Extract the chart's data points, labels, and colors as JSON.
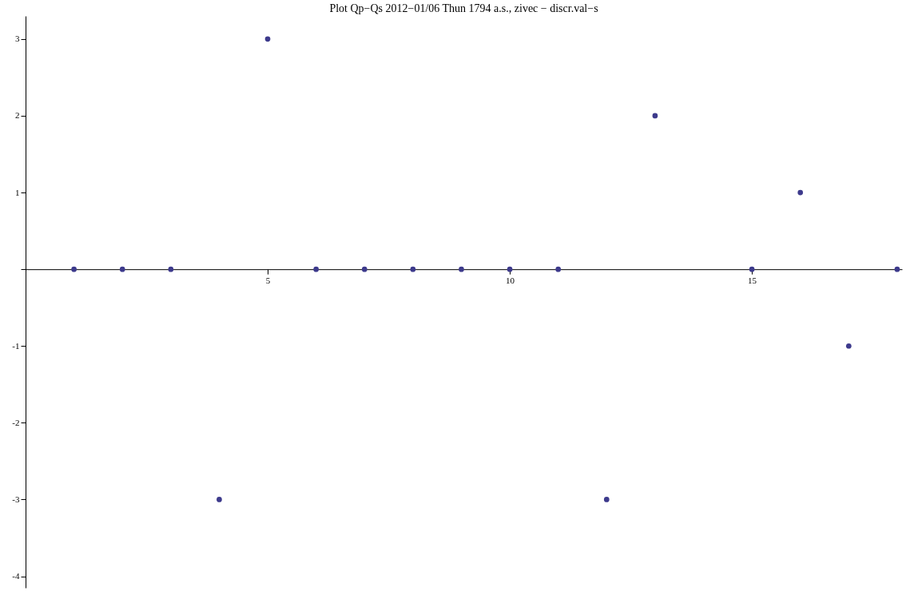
{
  "chart_data": {
    "type": "scatter",
    "title": "Plot Qp−Qs 2012−01/06 Thun 1794 a.s., zivec − discr.val−s",
    "x": [
      1,
      2,
      3,
      4,
      5,
      6,
      7,
      8,
      9,
      10,
      11,
      12,
      13,
      15,
      16,
      17,
      18
    ],
    "series": [
      {
        "color": "#3d3a8c",
        "values": [
          0,
          0,
          0,
          -3,
          3,
          0,
          0,
          0,
          0,
          0,
          0,
          -3,
          2,
          0,
          1,
          -1,
          0
        ]
      }
    ],
    "xlim": [
      0,
      18.1
    ],
    "ylim": [
      -4.15,
      3.3
    ],
    "xticks": [
      5,
      10,
      15
    ],
    "yticks": [
      -4,
      -3,
      -2,
      -1,
      {
        "value": 0,
        "label": null
      },
      1,
      2,
      3
    ],
    "grid": false,
    "marker": "circle"
  }
}
